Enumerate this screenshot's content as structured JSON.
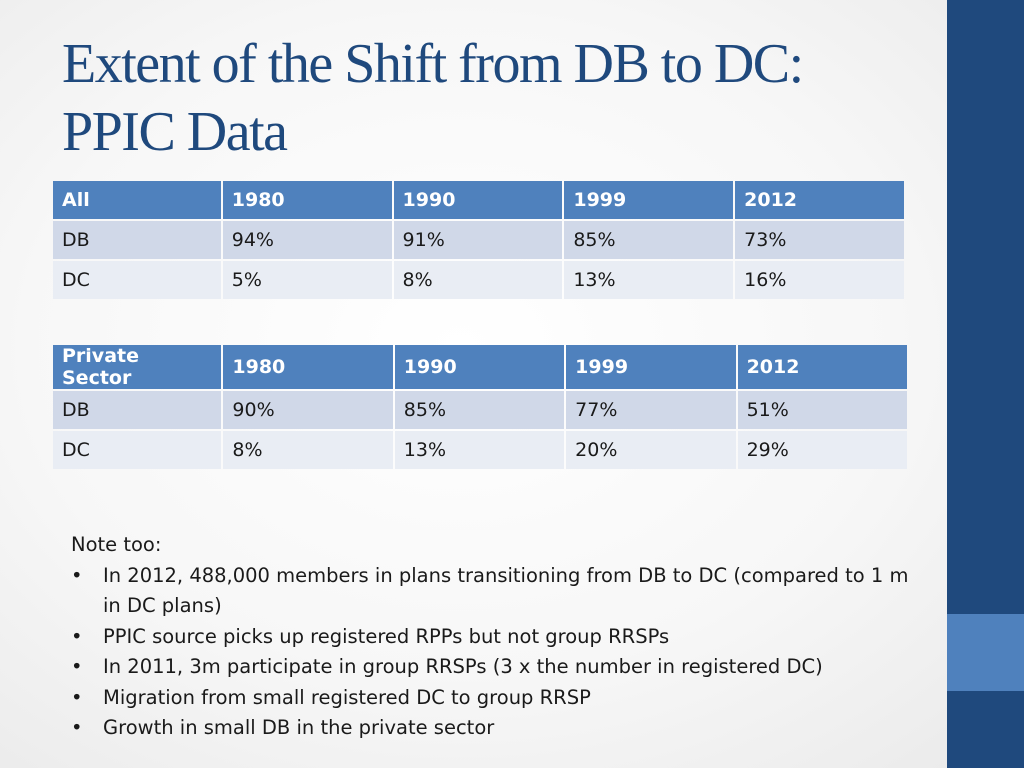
{
  "title": {
    "line1": "Extent of the Shift from DB to DC:",
    "line2": "PPIC Data"
  },
  "tables": [
    {
      "headers": [
        "All",
        "1980",
        "1990",
        "1999",
        "2012"
      ],
      "rows": [
        [
          "DB",
          "94%",
          "91%",
          "85%",
          "73%"
        ],
        [
          "DC",
          "5%",
          "8%",
          "13%",
          "16%"
        ]
      ]
    },
    {
      "headers": [
        "Private Sector",
        "1980",
        "1990",
        "1999",
        "2012"
      ],
      "rows": [
        [
          "DB",
          "90%",
          "85%",
          "77%",
          "51%"
        ],
        [
          "DC",
          "8%",
          "13%",
          "20%",
          "29%"
        ]
      ]
    }
  ],
  "notes": {
    "heading": "Note too:",
    "bullet_glyph": "•",
    "items": [
      " In 2012, 488,000 members in plans transitioning from DB to DC (compared to 1 m in DC plans)",
      "PPIC source picks up registered RPPs but not group RRSPs",
      "In 2011, 3m participate in group RRSPs (3 x the number in registered DC)",
      "Migration from small registered DC to group RRSP",
      "Growth in small DB in the private sector"
    ]
  },
  "colors": {
    "title": "#1f497d",
    "header_fill": "#4f81bd",
    "row_odd": "#d0d8e8",
    "row_even": "#e9edf4",
    "side_bar": "#1f497d",
    "side_accent": "#4f81bd"
  }
}
